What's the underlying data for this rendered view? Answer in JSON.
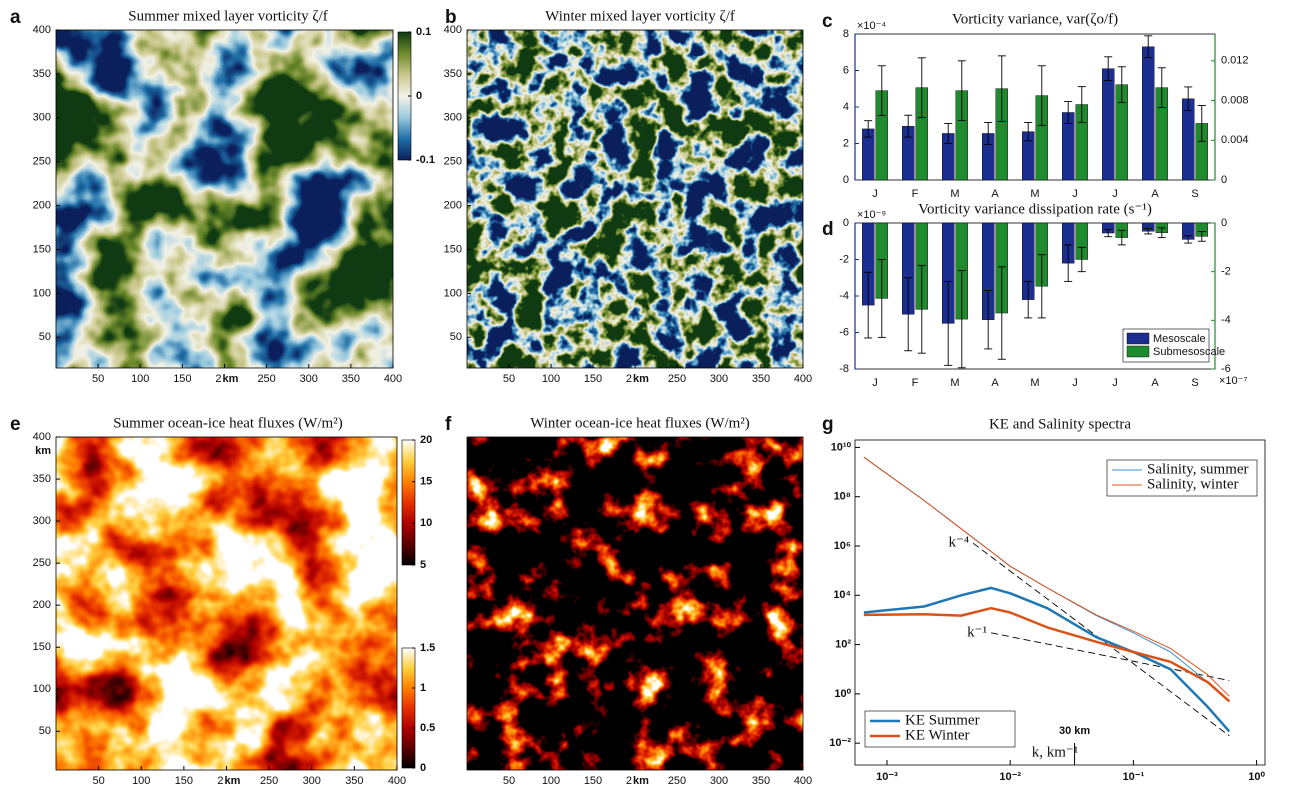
{
  "chart_data": [
    {
      "type": "heatmap",
      "panel": "a",
      "title": "Summer mixed layer vorticity ζ/f",
      "xlabel": "km",
      "xlim": [
        0,
        400
      ],
      "ylim": [
        15,
        400
      ],
      "xticks": [
        50,
        100,
        150,
        200,
        250,
        300,
        350,
        400
      ],
      "yticks": [
        50,
        100,
        150,
        200,
        250,
        300,
        350,
        400
      ],
      "colormap": [
        "#0b1f5c",
        "#1f6fa8",
        "#9ccbe0",
        "#f4f2e6",
        "#c9c78a",
        "#6d8a2a",
        "#0f3b12"
      ],
      "colorbar": {
        "lim": [
          -0.1,
          0.1
        ],
        "ticks": [
          0.1,
          0,
          -0.1
        ]
      }
    },
    {
      "type": "heatmap",
      "panel": "b",
      "title": "Winter mixed layer vorticity ζ/f",
      "xlabel": "km",
      "xlim": [
        0,
        400
      ],
      "ylim": [
        15,
        400
      ],
      "xticks": [
        50,
        100,
        150,
        200,
        250,
        300,
        350,
        400
      ],
      "yticks": [
        50,
        100,
        150,
        200,
        250,
        300,
        350,
        400
      ],
      "colormap": [
        "#0b1f5c",
        "#1f6fa8",
        "#9ccbe0",
        "#f4f2e6",
        "#c9c78a",
        "#6d8a2a",
        "#0f3b12"
      ]
    },
    {
      "type": "bar",
      "panel": "c",
      "title": "Vorticity variance, var(ζo/f)",
      "categories": [
        "J",
        "F",
        "M",
        "A",
        "M",
        "J",
        "J",
        "A",
        "S"
      ],
      "ylim": [
        0,
        8
      ],
      "yticks": [
        0,
        2,
        4,
        6,
        8
      ],
      "y_exponent": "×10⁻⁴",
      "y2lim": [
        0,
        0.0147
      ],
      "y2ticks": [
        0,
        0.004,
        0.008,
        0.012
      ],
      "series": [
        {
          "color": "#1c2e8f",
          "values": [
            2.8,
            2.95,
            2.55,
            2.55,
            2.65,
            3.7,
            6.1,
            7.3,
            4.45
          ],
          "errors": [
            0.45,
            0.6,
            0.55,
            0.6,
            0.5,
            0.6,
            0.65,
            0.6,
            0.65
          ]
        },
        {
          "color": "#1f8a2e",
          "axis": "y2",
          "values": [
            0.009,
            0.0093,
            0.009,
            0.0092,
            0.0085,
            0.0076,
            0.0096,
            0.0093,
            0.0057
          ],
          "errors": [
            0.0025,
            0.003,
            0.003,
            0.0033,
            0.003,
            0.0018,
            0.0018,
            0.002,
            0.0018
          ]
        }
      ]
    },
    {
      "type": "bar",
      "panel": "d",
      "title": "Vorticity variance dissipation rate (s⁻¹)",
      "categories": [
        "J",
        "F",
        "M",
        "A",
        "M",
        "J",
        "J",
        "A",
        "S"
      ],
      "ylim": [
        -8,
        0
      ],
      "yticks": [
        0,
        -2,
        -4,
        -6,
        -8
      ],
      "y_exponent": "×10⁻⁹",
      "y2lim": [
        -6,
        0
      ],
      "y2ticks": [
        0,
        -2,
        -4,
        -6
      ],
      "y2_exponent": "×10⁻⁷",
      "legend": "lower right",
      "series": [
        {
          "name": "Mesoscale",
          "color": "#1c2e8f",
          "values": [
            -4.5,
            -5,
            -5.5,
            -5.3,
            -4.2,
            -2.2,
            -0.55,
            -0.45,
            -0.9
          ],
          "errors": [
            1.8,
            2.0,
            2.3,
            1.6,
            1.0,
            1.0,
            0.2,
            0.15,
            0.2
          ]
        },
        {
          "name": "Submesoscale",
          "color": "#1f8a2e",
          "axis": "y2",
          "values": [
            -3.1,
            -3.55,
            -3.95,
            -3.7,
            -2.6,
            -1.5,
            -0.6,
            -0.4,
            -0.55
          ],
          "errors": [
            1.6,
            1.8,
            2.0,
            1.9,
            1.3,
            0.5,
            0.3,
            0.2,
            0.2
          ]
        }
      ]
    },
    {
      "type": "heatmap",
      "panel": "e",
      "title": "Summer ocean-ice heat fluxes (W/m²)",
      "xlabel": "km",
      "ylabel": "km",
      "xlim": [
        0,
        400
      ],
      "ylim": [
        4,
        400
      ],
      "xticks": [
        50,
        100,
        150,
        200,
        250,
        300,
        350,
        400
      ],
      "yticks": [
        50,
        100,
        150,
        200,
        250,
        300,
        350,
        400
      ],
      "colormap": [
        "#000000",
        "#5a0000",
        "#b00000",
        "#e83000",
        "#ff8000",
        "#ffd040",
        "#ffffff"
      ],
      "colorbar": {
        "lim": [
          5,
          20
        ],
        "ticks": [
          20,
          15,
          10,
          5
        ]
      }
    },
    {
      "type": "heatmap",
      "panel": "f",
      "title": "Winter ocean-ice heat fluxes (W/m²)",
      "xlabel": "km",
      "xlim": [
        0,
        400
      ],
      "ylim": [
        4,
        400
      ],
      "xticks": [
        50,
        100,
        150,
        200,
        250,
        300,
        350,
        400
      ],
      "colormap": [
        "#000000",
        "#5a0000",
        "#b00000",
        "#e83000",
        "#ff8000",
        "#ffd040",
        "#ffffff"
      ],
      "colorbar": {
        "lim": [
          0,
          1.5
        ],
        "ticks": [
          1.5,
          1,
          0.5,
          0
        ]
      }
    },
    {
      "type": "line",
      "panel": "g",
      "title": "KE and Salinity spectra",
      "xlabel": "k, km⁻¹",
      "log": true,
      "xlim": [
        0.00055,
        1.17
      ],
      "ylim": [
        0.0013,
        20000000000
      ],
      "xticks": [
        {
          "value": 0.001,
          "label": "10⁻³"
        },
        {
          "value": 0.01,
          "label": "10⁻²"
        },
        {
          "value": 0.1,
          "label": "10⁻¹"
        },
        {
          "value": 1,
          "label": "10⁰"
        }
      ],
      "yticks": [
        {
          "value": 0.01,
          "label": "10⁻²"
        },
        {
          "value": 1,
          "label": "10⁰"
        },
        {
          "value": 100,
          "label": "10²"
        },
        {
          "value": 10000,
          "label": "10⁴"
        },
        {
          "value": 1000000,
          "label": "10⁶"
        },
        {
          "value": 100000000,
          "label": "10⁸"
        },
        {
          "value": 10000000000,
          "label": "10¹⁰"
        }
      ],
      "x": [
        0.00065,
        0.002,
        0.004,
        0.007,
        0.01,
        0.02,
        0.05,
        0.1,
        0.2,
        0.4,
        0.6
      ],
      "series": [
        {
          "name": "Salinity, summer",
          "color": "#3a8fd0",
          "line_width": 1,
          "legend": "upper right",
          "values": [
            4000000000,
            70000000,
            5000000,
            600000,
            150000,
            20000,
            1500,
            300,
            50,
            3,
            0.5
          ]
        },
        {
          "name": "Salinity, winter",
          "color": "#d9541c",
          "line_width": 1,
          "legend": "upper right",
          "values": [
            4000000000,
            70000000,
            5000000,
            600000,
            150000,
            20000,
            1600,
            350,
            70,
            6,
            0.8
          ]
        },
        {
          "name": "KE Summer",
          "color": "#1f77b4",
          "line_width": 2.5,
          "legend": "lower left",
          "values": [
            2000,
            3500,
            10000,
            20000,
            12000,
            3000,
            200,
            50,
            10,
            0.3,
            0.03
          ]
        },
        {
          "name": "KE Winter",
          "color": "#d95319",
          "line_width": 2.5,
          "legend": "lower left",
          "values": [
            1600,
            1700,
            1500,
            3000,
            2000,
            500,
            130,
            50,
            20,
            3,
            0.5
          ]
        }
      ],
      "reference_lines": [
        {
          "label": "k⁻⁴",
          "x": [
            0.005,
            0.6
          ],
          "y": [
            1300000,
            0.02
          ]
        },
        {
          "label": "k⁻¹",
          "x": [
            0.007,
            0.6
          ],
          "y": [
            300,
            3.5
          ]
        }
      ],
      "annotation": {
        "text": "30 km",
        "x": 0.0333
      }
    }
  ]
}
